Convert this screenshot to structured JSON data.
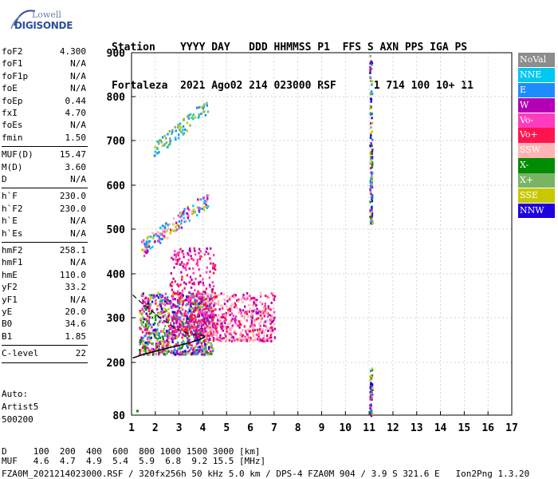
{
  "logo": {
    "line1": "Lowell",
    "line2": "DIGISONDE"
  },
  "header": {
    "line1": "Station    YYYY DAY   DDD HHMMSS P1  FFS S AXN PPS IGA PS",
    "line2": "Fortaleza  2021 Ago02 214 023000 RSF      1 714 100 10+ 11"
  },
  "params": [
    {
      "k": "foF2",
      "v": "4.300"
    },
    {
      "k": "foF1",
      "v": "N/A"
    },
    {
      "k": "foF1p",
      "v": "N/A"
    },
    {
      "k": "foE",
      "v": "N/A"
    },
    {
      "k": "foEp",
      "v": "0.44"
    },
    {
      "k": "fxI",
      "v": "4.70"
    },
    {
      "k": "foEs",
      "v": "N/A"
    },
    {
      "k": "fmin",
      "v": "1.50"
    },
    {
      "k": "MUF(D)",
      "v": "15.47"
    },
    {
      "k": "M(D)",
      "v": "3.60"
    },
    {
      "k": "D",
      "v": "N/A"
    },
    {
      "k": "h`F",
      "v": "230.0"
    },
    {
      "k": "h`F2",
      "v": "230.0"
    },
    {
      "k": "h`E",
      "v": "N/A"
    },
    {
      "k": "h`Es",
      "v": "N/A"
    },
    {
      "k": "hmF2",
      "v": "258.1"
    },
    {
      "k": "hmF1",
      "v": "N/A"
    },
    {
      "k": "hmE",
      "v": "110.0"
    },
    {
      "k": "yF2",
      "v": "33.2"
    },
    {
      "k": "yF1",
      "v": "N/A"
    },
    {
      "k": "yE",
      "v": "20.0"
    },
    {
      "k": "B0",
      "v": "34.6"
    },
    {
      "k": "B1",
      "v": "1.85"
    },
    {
      "k": "C-level",
      "v": "22"
    }
  ],
  "auto": {
    "l1": "Auto:",
    "l2": "Artist5",
    "l3": "500200"
  },
  "footer": {
    "d_row": "D     100  200  400  600  800 1000 1500 3000 [km]",
    "muf_row": "MUF   4.6  4.7  4.9  5.4  5.9  6.8  9.2 15.5 [MHz]",
    "info": "FZA0M_2021214023000.RSF / 320fx256h 50 kHz 5.0 km / DPS-4 FZA0M 904 / 3.9 S 321.6 E   Ion2Png 1.3.20"
  },
  "chart_data": {
    "type": "scatter",
    "xlim": [
      1,
      17
    ],
    "ylim": [
      80,
      900
    ],
    "x_ticks": [
      "1",
      "2",
      "3",
      "4",
      "5",
      "6",
      "7",
      "8",
      "9",
      "10",
      "11",
      "12",
      "13",
      "14",
      "15",
      "16",
      "17"
    ],
    "y_ticks": [
      "80",
      "200",
      "300",
      "400",
      "500",
      "600",
      "700",
      "800",
      "900"
    ],
    "y_tick_values": [
      80,
      200,
      300,
      400,
      500,
      600,
      700,
      800,
      900
    ],
    "y_scale": "reciprocal-like",
    "grid": true,
    "legend": [
      {
        "name": "NoVal",
        "color": "#8c8c8c"
      },
      {
        "name": "NNE",
        "color": "#00c8f0"
      },
      {
        "name": "E",
        "color": "#1e8cff"
      },
      {
        "name": "W",
        "color": "#b400b4"
      },
      {
        "name": "Vo-",
        "color": "#ff3cbe"
      },
      {
        "name": "Vo+",
        "color": "#ff1450"
      },
      {
        "name": "SSW",
        "color": "#ffb4b4"
      },
      {
        "name": "X-",
        "color": "#008c00"
      },
      {
        "name": "X+",
        "color": "#78b464"
      },
      {
        "name": "SSE",
        "color": "#c8c800"
      },
      {
        "name": "NNW",
        "color": "#1e00dc"
      }
    ],
    "profile_curve": [
      [
        1.05,
        210
      ],
      [
        1.5,
        218
      ],
      [
        2,
        225
      ],
      [
        2.5,
        232
      ],
      [
        3,
        238
      ],
      [
        3.5,
        245
      ],
      [
        3.9,
        252
      ],
      [
        4.1,
        258
      ]
    ],
    "profile_dashed": [
      [
        1.05,
        352
      ],
      [
        1.4,
        335
      ],
      [
        1.8,
        318
      ],
      [
        2.2,
        300
      ],
      [
        2.6,
        285
      ],
      [
        3,
        272
      ],
      [
        3.4,
        265
      ],
      [
        3.8,
        262
      ],
      [
        4.1,
        260
      ]
    ],
    "clusters": [
      {
        "x0": 1.3,
        "x1": 4.4,
        "y0": 220,
        "y1": 360,
        "n": 900,
        "colors": [
          "W",
          "Vo-",
          "Vo+",
          "X-",
          "E",
          "NNW",
          "SSE",
          "X+"
        ]
      },
      {
        "x0": 2.6,
        "x1": 4.5,
        "y0": 260,
        "y1": 460,
        "n": 350,
        "colors": [
          "W",
          "Vo-",
          "Vo+"
        ]
      },
      {
        "x0": 4.0,
        "x1": 7.0,
        "y0": 250,
        "y1": 360,
        "n": 500,
        "colors": [
          "SSW",
          "Vo-",
          "SSW",
          "Vo+",
          "W"
        ]
      },
      {
        "x0": 1.4,
        "x1": 4.2,
        "y0": 450,
        "y1": 600,
        "n": 160,
        "colors": [
          "E",
          "NNE",
          "SSE",
          "Vo-",
          "W",
          "SSW"
        ],
        "diag": true
      },
      {
        "x0": 1.9,
        "x1": 4.2,
        "y0": 670,
        "y1": 810,
        "n": 90,
        "colors": [
          "E",
          "NNE",
          "SSE",
          "X+"
        ],
        "diag": true
      },
      {
        "x0": 11.0,
        "x1": 11.1,
        "y0": 515,
        "y1": 900,
        "n": 120,
        "colors": [
          "NNW",
          "W",
          "X-",
          "X+",
          "SSE",
          "E"
        ]
      },
      {
        "x0": 11.0,
        "x1": 11.1,
        "y0": 80,
        "y1": 190,
        "n": 60,
        "colors": [
          "NNW",
          "W",
          "X-",
          "SSE",
          "E"
        ]
      }
    ]
  }
}
